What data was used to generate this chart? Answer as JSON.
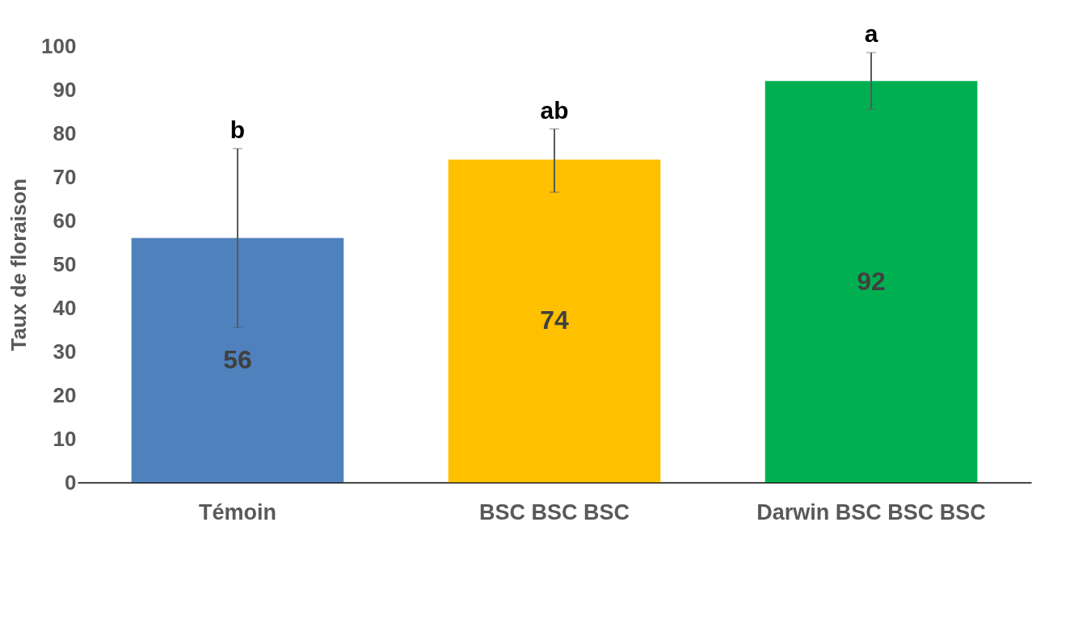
{
  "chart_data": {
    "type": "bar",
    "ylabel": "Taux de floraison",
    "categories": [
      "Témoin",
      "\nBSC\nBSC\nBSC",
      "Darwin\nBSC\nBSC\nBSC"
    ],
    "values": [
      56,
      74,
      92
    ],
    "colors": [
      "#4f81bd",
      "#ffc000",
      "#00b050"
    ],
    "errors": [
      [
        35.5,
        76.5
      ],
      [
        66.5,
        81
      ],
      [
        85.5,
        98.5
      ]
    ],
    "data_labels": true,
    "ylim": [
      0,
      100
    ],
    "yticks": [
      0,
      10,
      20,
      30,
      40,
      50,
      60,
      70,
      80,
      90,
      100
    ],
    "grid": false,
    "annotations": [
      "b",
      "ab",
      "a"
    ]
  }
}
